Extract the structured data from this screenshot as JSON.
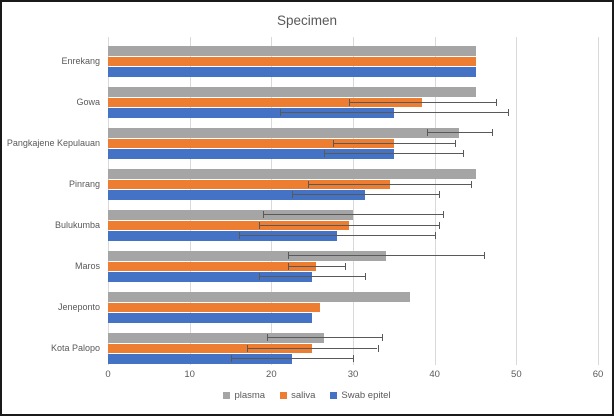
{
  "title": "Specimen",
  "colors": {
    "plasma": "#A5A5A5",
    "saliva": "#ED7D31",
    "swab_epitel": "#4472C4",
    "gridline": "#D9D9D9",
    "text": "#595959",
    "error_bar": "#595959"
  },
  "legend": {
    "position": "bottom",
    "items": [
      "plasma",
      "saliva",
      "Swab epitel"
    ]
  },
  "chart_data": {
    "type": "bar",
    "orientation": "horizontal",
    "title": "Specimen",
    "categories": [
      "Enrekang",
      "Gowa",
      "Pangkajene Kepulauan",
      "Pinrang",
      "Bulukumba",
      "Maros",
      "Jeneponto",
      "Kota Palopo"
    ],
    "series": [
      {
        "name": "plasma",
        "color": "#A5A5A5",
        "values": [
          45,
          45,
          43,
          45,
          30,
          34,
          37,
          26.5
        ],
        "errors": [
          0,
          0,
          4,
          0,
          11,
          12,
          0,
          7
        ]
      },
      {
        "name": "saliva",
        "color": "#ED7D31",
        "values": [
          45,
          38.5,
          35,
          34.5,
          29.5,
          25.5,
          26,
          25
        ],
        "errors": [
          0,
          9,
          7.5,
          10,
          11,
          3.5,
          0,
          8
        ]
      },
      {
        "name": "Swab epitel",
        "color": "#4472C4",
        "values": [
          45,
          35,
          35,
          31.5,
          28,
          25,
          25,
          22.5
        ],
        "errors": [
          0,
          14,
          8.5,
          9,
          12,
          6.5,
          0,
          7.5
        ]
      }
    ],
    "xlim": [
      0,
      60
    ],
    "xticks": [
      0,
      10,
      20,
      30,
      40,
      50,
      60
    ],
    "grid": "vertical",
    "legend_position": "bottom"
  }
}
